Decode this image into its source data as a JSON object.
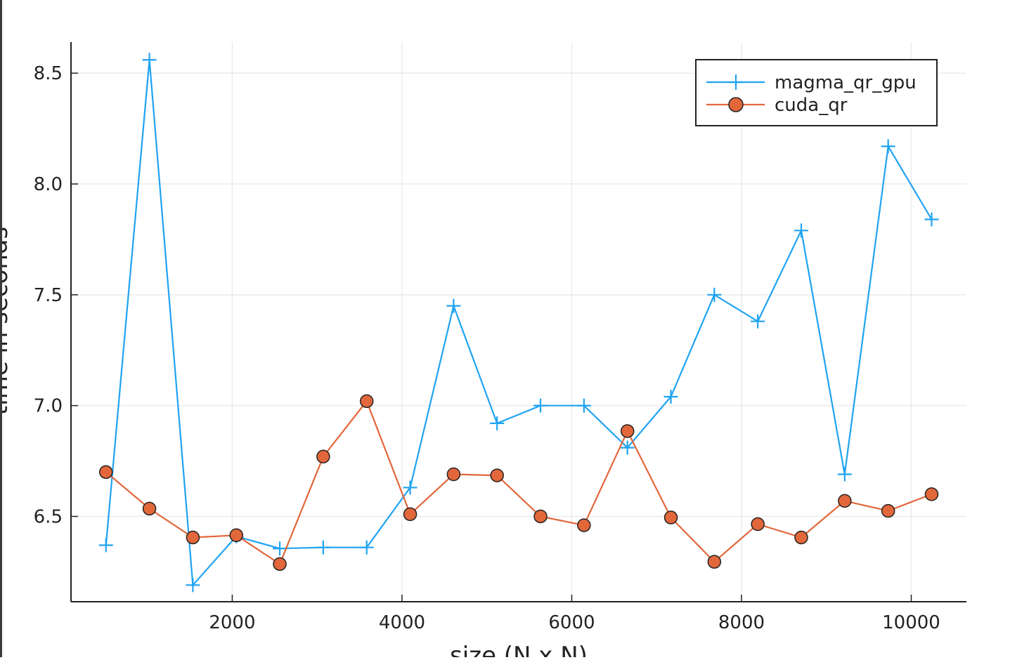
{
  "chart_data": {
    "type": "line",
    "title": "",
    "xlabel": "size (N x N)",
    "ylabel": "time in seconds",
    "xlim": [
      100,
      10650
    ],
    "ylim": [
      6.115,
      8.64
    ],
    "grid": true,
    "legend_position": "top-right",
    "x_ticks": [
      2000,
      4000,
      6000,
      8000,
      10000
    ],
    "x_tick_labels": [
      "2000",
      "4000",
      "6000",
      "8000",
      "10000"
    ],
    "y_ticks": [
      6.5,
      7.0,
      7.5,
      8.0,
      8.5
    ],
    "y_tick_labels": [
      "6.5",
      "7.0",
      "7.5",
      "8.0",
      "8.5"
    ],
    "x": [
      512,
      1024,
      1536,
      2048,
      2560,
      3072,
      3584,
      4096,
      4608,
      5120,
      5632,
      6144,
      6656,
      7168,
      7680,
      8192,
      8704,
      9216,
      9728,
      10240
    ],
    "series": [
      {
        "name": "magma_qr_gpu",
        "color": "#1fa3f2",
        "marker": "plus",
        "values": [
          6.37,
          8.56,
          6.19,
          6.41,
          6.355,
          6.36,
          6.36,
          6.63,
          7.45,
          6.92,
          7.0,
          7.0,
          6.81,
          7.04,
          7.5,
          7.38,
          7.79,
          6.69,
          8.17,
          7.84
        ]
      },
      {
        "name": "cuda_qr",
        "color": "#e2673b",
        "marker": "circle",
        "values": [
          6.7,
          6.535,
          6.405,
          6.415,
          6.285,
          6.77,
          7.02,
          6.51,
          6.69,
          6.685,
          6.5,
          6.46,
          6.885,
          6.495,
          6.295,
          6.465,
          6.405,
          6.57,
          6.525,
          6.6
        ]
      }
    ]
  }
}
